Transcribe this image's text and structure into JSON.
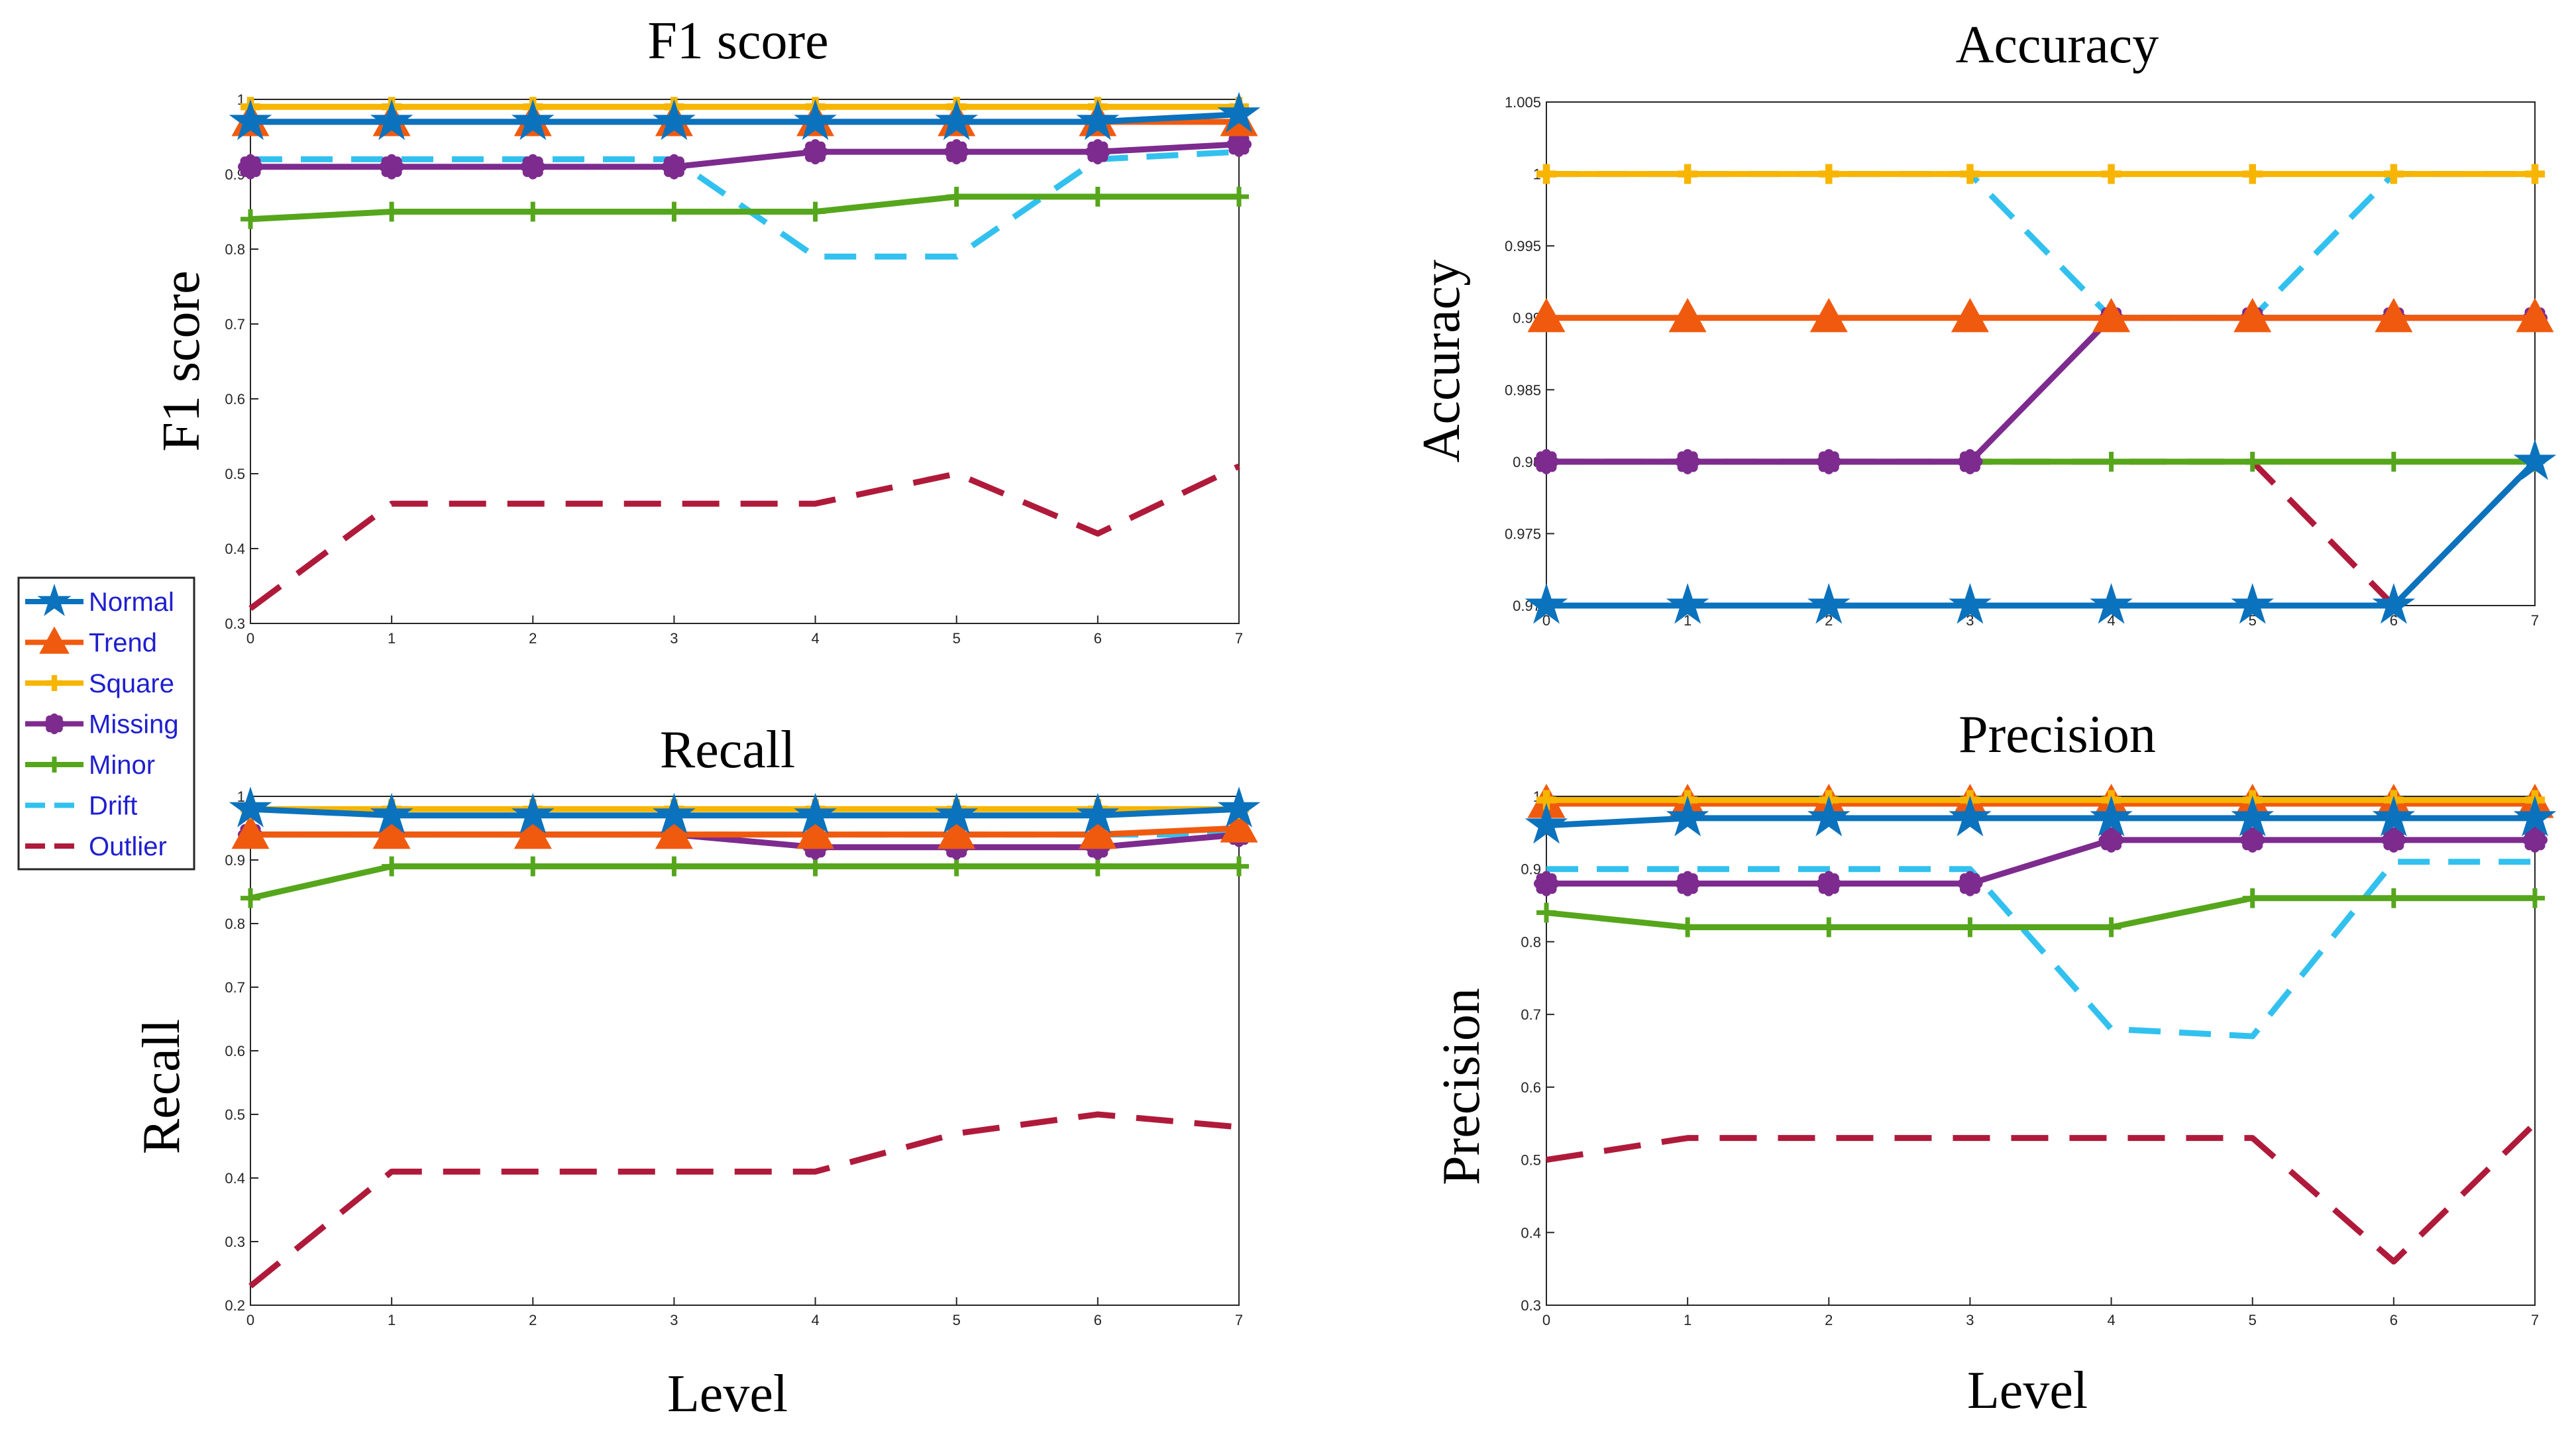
{
  "colors": {
    "Normal": "#0b72bd",
    "Trend": "#f05a0f",
    "Square": "#f7b500",
    "Missing": "#7d2b8e",
    "Minor": "#56a61c",
    "Drift": "#32c1ef",
    "Outlier": "#b01a3a",
    "axis": "#262626",
    "legend_text": "#1f1fd0"
  },
  "legend": [
    "Normal",
    "Trend",
    "Square",
    "Missing",
    "Minor",
    "Drift",
    "Outlier"
  ],
  "x_axis_label": "Level",
  "chart_data": [
    {
      "type": "line",
      "title": "F1 score",
      "ylabel": "F1 score",
      "xlabel": "",
      "x": [
        0,
        1,
        2,
        3,
        4,
        5,
        6,
        7
      ],
      "xlim": [
        0,
        7
      ],
      "ylim": [
        0.3,
        1.0
      ],
      "yticks": [
        0.3,
        0.4,
        0.5,
        0.6,
        0.7,
        0.8,
        0.9,
        1
      ],
      "ytick_labels": [
        "0.3",
        "0.4",
        "0.5",
        "0.6",
        "0.7",
        "0.8",
        "0.9",
        "1"
      ],
      "series": [
        {
          "name": "Normal",
          "values": [
            0.97,
            0.97,
            0.97,
            0.97,
            0.97,
            0.97,
            0.97,
            0.98
          ]
        },
        {
          "name": "Trend",
          "values": [
            0.97,
            0.97,
            0.97,
            0.97,
            0.97,
            0.97,
            0.97,
            0.97
          ]
        },
        {
          "name": "Square",
          "values": [
            0.99,
            0.99,
            0.99,
            0.99,
            0.99,
            0.99,
            0.99,
            0.99
          ]
        },
        {
          "name": "Missing",
          "values": [
            0.91,
            0.91,
            0.91,
            0.91,
            0.93,
            0.93,
            0.93,
            0.94
          ]
        },
        {
          "name": "Minor",
          "values": [
            0.84,
            0.85,
            0.85,
            0.85,
            0.85,
            0.87,
            0.87,
            0.87
          ]
        },
        {
          "name": "Drift",
          "values": [
            0.92,
            0.92,
            0.92,
            0.92,
            0.79,
            0.79,
            0.92,
            0.93
          ]
        },
        {
          "name": "Outlier",
          "values": [
            0.32,
            0.46,
            0.46,
            0.46,
            0.46,
            0.5,
            0.42,
            0.51
          ]
        }
      ]
    },
    {
      "type": "line",
      "title": "Accuracy",
      "ylabel": "Accuracy",
      "xlabel": "",
      "x": [
        0,
        1,
        2,
        3,
        4,
        5,
        6,
        7
      ],
      "xlim": [
        0,
        7
      ],
      "ylim": [
        0.97,
        1.005
      ],
      "yticks": [
        0.97,
        0.975,
        0.98,
        0.985,
        0.99,
        0.995,
        1,
        1.005
      ],
      "ytick_labels": [
        "0.97",
        "0.975",
        "0.98",
        "0.985",
        "0.99",
        "0.995",
        "1",
        "1.005"
      ],
      "series": [
        {
          "name": "Normal",
          "values": [
            0.97,
            0.97,
            0.97,
            0.97,
            0.97,
            0.97,
            0.97,
            0.98
          ]
        },
        {
          "name": "Trend",
          "values": [
            0.99,
            0.99,
            0.99,
            0.99,
            0.99,
            0.99,
            0.99,
            0.99
          ]
        },
        {
          "name": "Square",
          "values": [
            1,
            1,
            1,
            1,
            1,
            1,
            1,
            1
          ]
        },
        {
          "name": "Missing",
          "values": [
            0.98,
            0.98,
            0.98,
            0.98,
            0.99,
            0.99,
            0.99,
            0.99
          ]
        },
        {
          "name": "Minor",
          "values": [
            0.98,
            0.98,
            0.98,
            0.98,
            0.98,
            0.98,
            0.98,
            0.98
          ]
        },
        {
          "name": "Drift",
          "values": [
            1,
            1,
            1,
            1,
            0.99,
            0.99,
            1,
            1
          ]
        },
        {
          "name": "Outlier",
          "values": [
            0.98,
            0.98,
            0.98,
            0.98,
            0.98,
            0.98,
            0.97,
            0.98
          ]
        }
      ]
    },
    {
      "type": "line",
      "title": "Recall",
      "ylabel": "Recall",
      "xlabel": "Level",
      "x": [
        0,
        1,
        2,
        3,
        4,
        5,
        6,
        7
      ],
      "xlim": [
        0,
        7
      ],
      "ylim": [
        0.2,
        1.0
      ],
      "yticks": [
        0.2,
        0.3,
        0.4,
        0.5,
        0.6,
        0.7,
        0.8,
        0.9,
        1
      ],
      "ytick_labels": [
        "0.2",
        "0.3",
        "0.4",
        "0.5",
        "0.6",
        "0.7",
        "0.8",
        "0.9",
        "1"
      ],
      "series": [
        {
          "name": "Normal",
          "values": [
            0.98,
            0.97,
            0.97,
            0.97,
            0.97,
            0.97,
            0.97,
            0.98
          ]
        },
        {
          "name": "Trend",
          "values": [
            0.94,
            0.94,
            0.94,
            0.94,
            0.94,
            0.94,
            0.94,
            0.95
          ]
        },
        {
          "name": "Square",
          "values": [
            0.98,
            0.98,
            0.98,
            0.98,
            0.98,
            0.98,
            0.98,
            0.98
          ]
        },
        {
          "name": "Missing",
          "values": [
            0.94,
            0.94,
            0.94,
            0.94,
            0.92,
            0.92,
            0.92,
            0.94
          ]
        },
        {
          "name": "Minor",
          "values": [
            0.84,
            0.89,
            0.89,
            0.89,
            0.89,
            0.89,
            0.89,
            0.89
          ]
        },
        {
          "name": "Drift",
          "values": [
            0.94,
            0.94,
            0.94,
            0.94,
            0.94,
            0.94,
            0.94,
            0.94
          ]
        },
        {
          "name": "Outlier",
          "values": [
            0.23,
            0.41,
            0.41,
            0.41,
            0.41,
            0.47,
            0.5,
            0.48
          ]
        }
      ]
    },
    {
      "type": "line",
      "title": "Precision",
      "ylabel": "Precision",
      "xlabel": "Level",
      "x": [
        0,
        1,
        2,
        3,
        4,
        5,
        6,
        7
      ],
      "xlim": [
        0,
        7
      ],
      "ylim": [
        0.3,
        1.0
      ],
      "yticks": [
        0.3,
        0.4,
        0.5,
        0.6,
        0.7,
        0.8,
        0.9,
        1
      ],
      "ytick_labels": [
        "0.3",
        "0.4",
        "0.5",
        "0.6",
        "0.7",
        "0.8",
        "0.9",
        "1"
      ],
      "series": [
        {
          "name": "Normal",
          "values": [
            0.96,
            0.97,
            0.97,
            0.97,
            0.97,
            0.97,
            0.97,
            0.97
          ]
        },
        {
          "name": "Trend",
          "values": [
            0.99,
            0.99,
            0.99,
            0.99,
            0.99,
            0.99,
            0.99,
            0.99
          ]
        },
        {
          "name": "Square",
          "values": [
            0.995,
            0.995,
            0.995,
            0.995,
            0.995,
            0.995,
            0.995,
            0.995
          ]
        },
        {
          "name": "Missing",
          "values": [
            0.88,
            0.88,
            0.88,
            0.88,
            0.94,
            0.94,
            0.94,
            0.94
          ]
        },
        {
          "name": "Minor",
          "values": [
            0.84,
            0.82,
            0.82,
            0.82,
            0.82,
            0.86,
            0.86,
            0.86
          ]
        },
        {
          "name": "Drift",
          "values": [
            0.9,
            0.9,
            0.9,
            0.9,
            0.68,
            0.67,
            0.91,
            0.91
          ]
        },
        {
          "name": "Outlier",
          "values": [
            0.5,
            0.53,
            0.53,
            0.53,
            0.53,
            0.53,
            0.36,
            0.55
          ]
        }
      ]
    }
  ]
}
